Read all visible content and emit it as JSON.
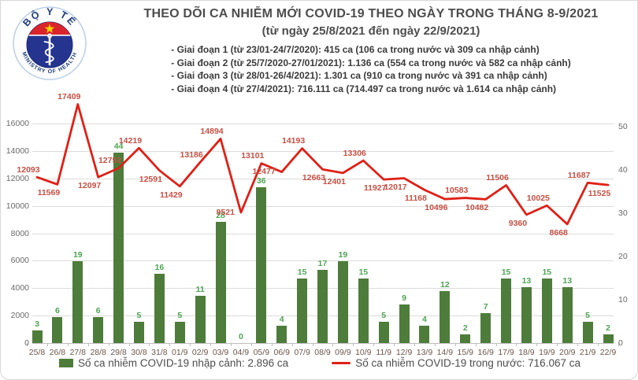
{
  "header": {
    "title": "THEO DÕI CA NHIỄM MỚI COVID-19 THEO NGÀY TRONG THÁNG 8-9/2021",
    "subtitle": "(từ ngày 25/8/2021 đến ngày 22/9/2021)",
    "notes": [
      "- Giai đoạn 1 (từ 23/01-24/7/2020): 415 ca (106 ca trong nước và 309 ca nhập cảnh)",
      "- Giai đoạn 2 (từ 25/7/2020-27/01/2021): 1.136 ca (554 ca trong nước và 582 ca nhập cảnh)",
      "- Giai đoạn 3 (từ 28/01-26/4/2021): 1.301 ca (910 ca trong nước và 391 ca nhập cảnh)",
      "- Giai đoạn 4 (từ 27/4/2021): 716.111 ca (714.497 ca trong nước và 1.614 ca nhập cảnh)"
    ],
    "logo": {
      "arc_top": "BỘ Y TẾ",
      "arc_bottom": "MINISTRY OF HEALTH"
    }
  },
  "chart_data": {
    "type": "bar+line combo, dual axis",
    "categories": [
      "25/8",
      "26/8",
      "27/8",
      "28/8",
      "29/8",
      "30/8",
      "31/8",
      "01/9",
      "02/9",
      "03/9",
      "04/9",
      "05/9",
      "06/9",
      "07/9",
      "08/9",
      "09/9",
      "10/9",
      "11/9",
      "12/9",
      "13/9",
      "14/9",
      "15/9",
      "16/9",
      "17/9",
      "18/9",
      "19/9",
      "20/9",
      "21/9",
      "22/9"
    ],
    "series": [
      {
        "name": "Số ca nhiễm COVID-19 nhập cảnh",
        "type": "bar",
        "axis": "right",
        "color": "#4e7c3a",
        "label_color": "#4da453",
        "values": [
          3,
          6,
          19,
          6,
          44,
          5,
          16,
          5,
          11,
          28,
          0,
          36,
          4,
          15,
          17,
          19,
          15,
          5,
          9,
          4,
          12,
          2,
          7,
          15,
          13,
          15,
          13,
          5,
          2
        ]
      },
      {
        "name": "Số ca nhiễm COVID-19 trong nước",
        "type": "line",
        "axis": "left",
        "color": "#df2016",
        "label_color": "#c65044",
        "values": [
          12093,
          11569,
          17409,
          12097,
          12752,
          14219,
          12591,
          11429,
          13186,
          14894,
          9521,
          13101,
          12477,
          14193,
          12663,
          12401,
          13306,
          11927,
          12017,
          11168,
          10496,
          10583,
          10482,
          11506,
          9360,
          10025,
          8668,
          11687,
          11525
        ],
        "label_side": [
          "above",
          "below",
          "above",
          "below",
          "above",
          "above",
          "below",
          "below",
          "above",
          "above",
          "left",
          "above",
          "left",
          "above",
          "below",
          "below",
          "above",
          "below",
          "below",
          "below",
          "below",
          "above",
          "below",
          "above",
          "below",
          "above",
          "below",
          "above",
          "below"
        ]
      }
    ],
    "left_axis": {
      "ticks": [
        0,
        2000,
        4000,
        6000,
        8000,
        10000,
        12000,
        14000,
        16000
      ],
      "max": 17500
    },
    "right_axis": {
      "ticks": [
        0,
        10,
        20,
        30,
        40,
        50
      ],
      "max": 55.5
    },
    "grid": "horizontal, primary axis",
    "legend_position": "bottom"
  },
  "legend": [
    {
      "label": "Số ca nhiễm COVID-19 nhập cảnh: 2.896 ca",
      "marker": "square",
      "color": "#4e7c3a"
    },
    {
      "label": "Số ca nhiễm COVID-19 trong nước: 716.067 ca",
      "marker": "line",
      "color": "#df2016"
    }
  ]
}
